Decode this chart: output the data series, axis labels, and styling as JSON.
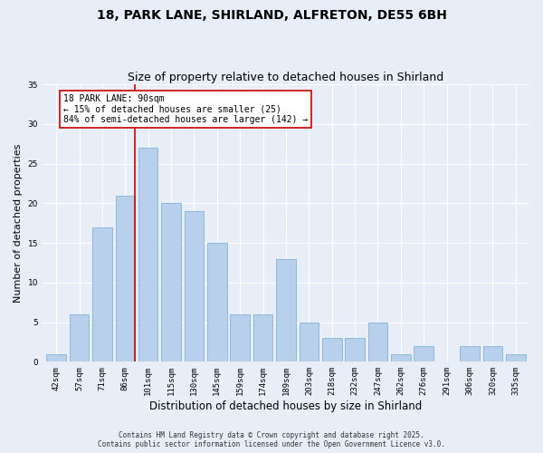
{
  "title": "18, PARK LANE, SHIRLAND, ALFRETON, DE55 6BH",
  "subtitle": "Size of property relative to detached houses in Shirland",
  "xlabel": "Distribution of detached houses by size in Shirland",
  "ylabel": "Number of detached properties",
  "bar_labels": [
    "42sqm",
    "57sqm",
    "71sqm",
    "86sqm",
    "101sqm",
    "115sqm",
    "130sqm",
    "145sqm",
    "159sqm",
    "174sqm",
    "189sqm",
    "203sqm",
    "218sqm",
    "232sqm",
    "247sqm",
    "262sqm",
    "276sqm",
    "291sqm",
    "306sqm",
    "320sqm",
    "335sqm"
  ],
  "bar_values": [
    1,
    6,
    17,
    21,
    27,
    20,
    19,
    15,
    6,
    6,
    13,
    5,
    3,
    3,
    5,
    1,
    2,
    0,
    2,
    2,
    1
  ],
  "bar_color": "#b8d0eb",
  "bar_edge_color": "#8fb8db",
  "vline_color": "#cc0000",
  "annotation_title": "18 PARK LANE: 90sqm",
  "annotation_line1": "← 15% of detached houses are smaller (25)",
  "annotation_line2": "84% of semi-detached houses are larger (142) →",
  "annotation_box_color": "#ffffff",
  "annotation_box_edge": "#cc0000",
  "ylim": [
    0,
    35
  ],
  "yticks": [
    0,
    5,
    10,
    15,
    20,
    25,
    30,
    35
  ],
  "background_color": "#e8eef8",
  "footer_line1": "Contains HM Land Registry data © Crown copyright and database right 2025.",
  "footer_line2": "Contains public sector information licensed under the Open Government Licence v3.0.",
  "title_fontsize": 10,
  "subtitle_fontsize": 9,
  "xlabel_fontsize": 8.5,
  "ylabel_fontsize": 8,
  "tick_fontsize": 6.5,
  "annotation_fontsize": 7,
  "footer_fontsize": 5.5
}
